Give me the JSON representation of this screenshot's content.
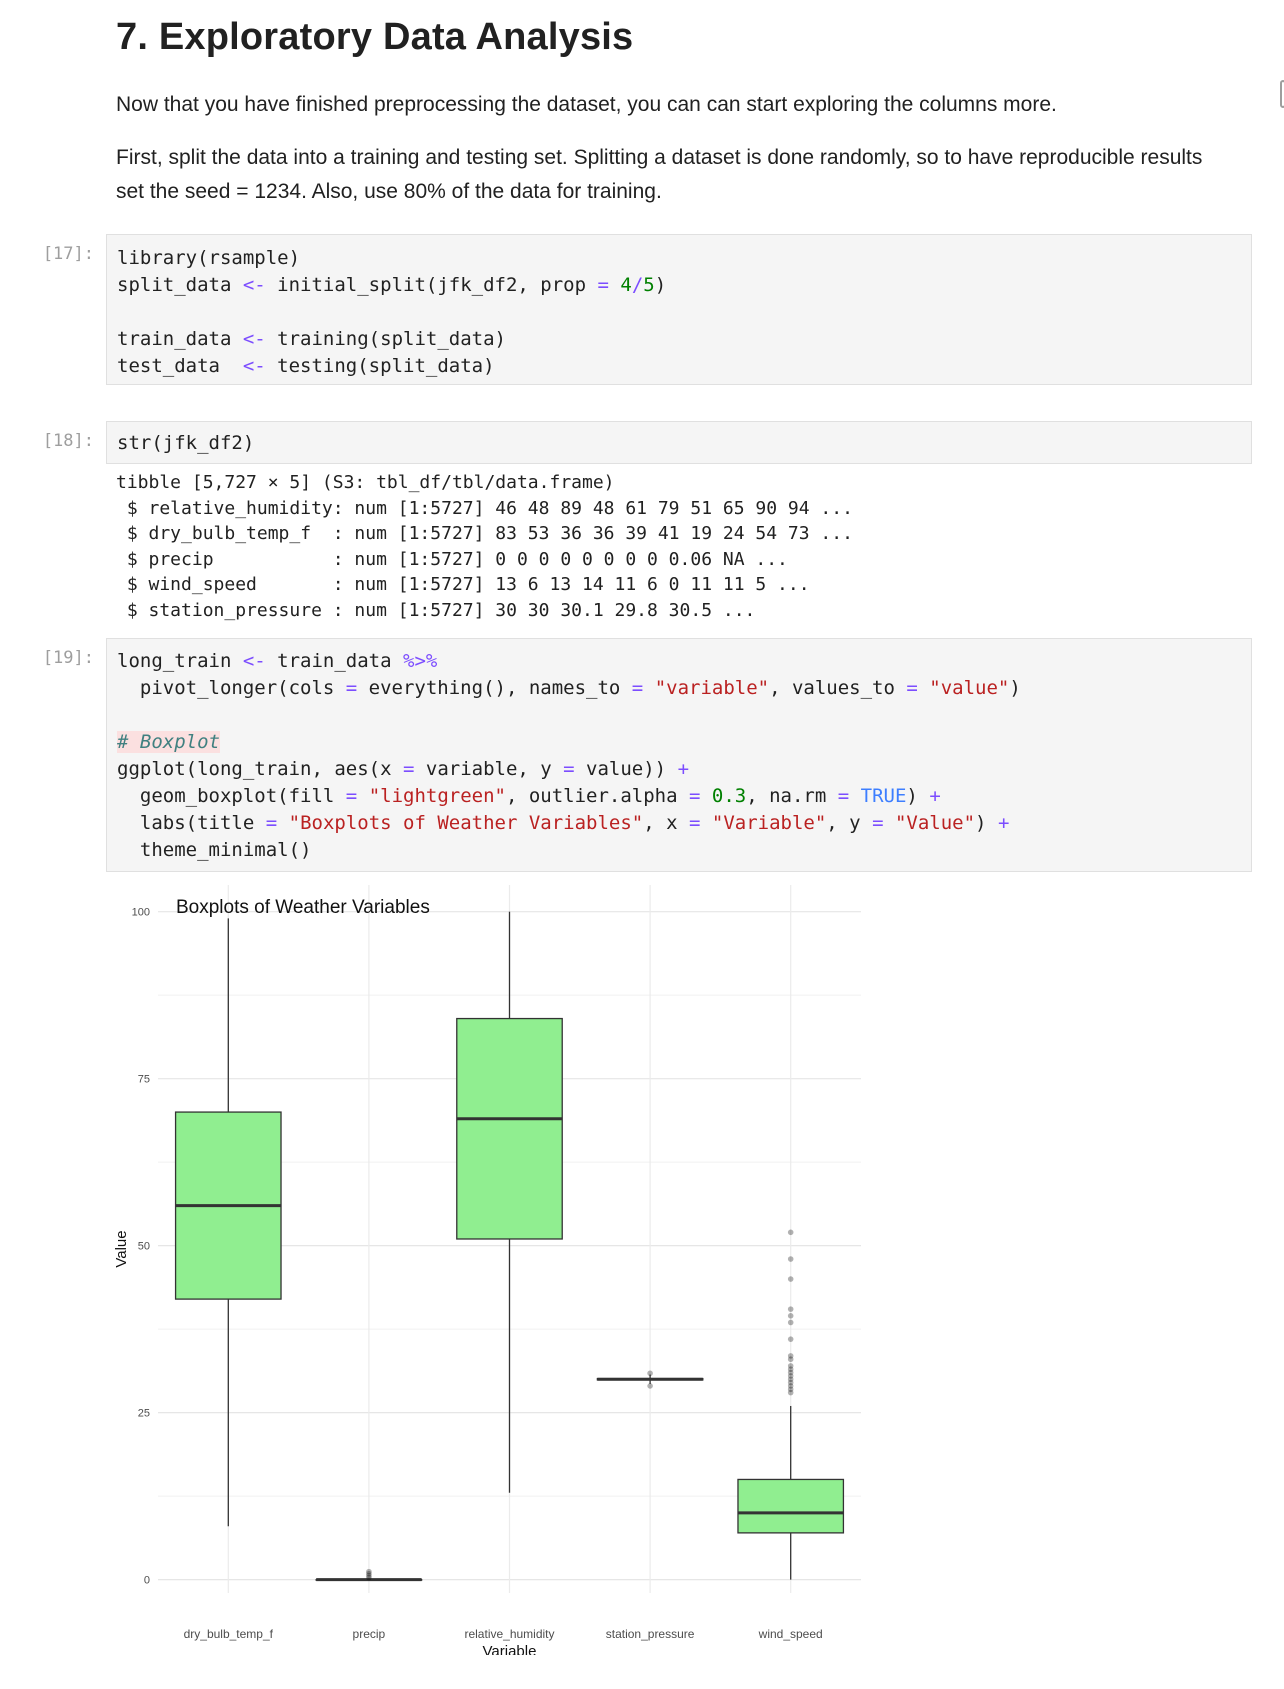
{
  "markdown": {
    "heading": "7. Exploratory Data Analysis",
    "para1": "Now that you have finished preprocessing the dataset, you can can start exploring the columns more.",
    "para2_line1": "First, split the data into a training and testing set. Splitting a dataset is done randomly, so to have reproducible results",
    "para2_line2": "set the seed = 1234. Also, use 80% of the data for training."
  },
  "cells": [
    {
      "prompt": "[17]:",
      "lines": [
        [
          [
            "library(rsample)",
            "tok"
          ]
        ],
        [
          [
            "split_data ",
            "tok"
          ],
          [
            "<-",
            "op"
          ],
          [
            " initial_split(jfk_df2, prop ",
            "tok"
          ],
          [
            "=",
            "op"
          ],
          [
            " ",
            "tok"
          ],
          [
            "4",
            "num"
          ],
          [
            "/",
            "op"
          ],
          [
            "5",
            "num"
          ],
          [
            ")",
            "tok"
          ]
        ],
        [],
        [
          [
            "train_data ",
            "tok"
          ],
          [
            "<-",
            "op"
          ],
          [
            " training(split_data)",
            "tok"
          ]
        ],
        [
          [
            "test_data  ",
            "tok"
          ],
          [
            "<-",
            "op"
          ],
          [
            " testing(split_data)",
            "tok"
          ]
        ]
      ]
    },
    {
      "prompt": "[18]:",
      "lines": [
        [
          [
            "str(jfk_df2)",
            "tok"
          ]
        ]
      ]
    },
    {
      "prompt": "[19]:",
      "lines": [
        [
          [
            "long_train ",
            "tok"
          ],
          [
            "<-",
            "op"
          ],
          [
            " train_data ",
            "tok"
          ],
          [
            "%>%",
            "op"
          ]
        ],
        [
          [
            "  pivot_longer(cols ",
            "tok"
          ],
          [
            "=",
            "op"
          ],
          [
            " everything(), names_to ",
            "tok"
          ],
          [
            "=",
            "op"
          ],
          [
            " ",
            "tok"
          ],
          [
            "\"variable\"",
            "str"
          ],
          [
            ", values_to ",
            "tok"
          ],
          [
            "=",
            "op"
          ],
          [
            " ",
            "tok"
          ],
          [
            "\"value\"",
            "str"
          ],
          [
            ")",
            "tok"
          ]
        ],
        [],
        [
          [
            "# Boxplot",
            "cmt"
          ]
        ],
        [
          [
            "ggplot(long_train, aes(x ",
            "tok"
          ],
          [
            "=",
            "op"
          ],
          [
            " variable, y ",
            "tok"
          ],
          [
            "=",
            "op"
          ],
          [
            " value)) ",
            "tok"
          ],
          [
            "+",
            "op"
          ]
        ],
        [
          [
            "  geom_boxplot(fill ",
            "tok"
          ],
          [
            "=",
            "op"
          ],
          [
            " ",
            "tok"
          ],
          [
            "\"lightgreen\"",
            "str"
          ],
          [
            ", outlier.alpha ",
            "tok"
          ],
          [
            "=",
            "op"
          ],
          [
            " ",
            "tok"
          ],
          [
            "0.3",
            "num"
          ],
          [
            ", na.rm ",
            "tok"
          ],
          [
            "=",
            "op"
          ],
          [
            " ",
            "tok"
          ],
          [
            "TRUE",
            "kw"
          ],
          [
            ") ",
            "tok"
          ],
          [
            "+",
            "op"
          ]
        ],
        [
          [
            "  labs(title ",
            "tok"
          ],
          [
            "=",
            "op"
          ],
          [
            " ",
            "tok"
          ],
          [
            "\"Boxplots of Weather Variables\"",
            "str"
          ],
          [
            ", x ",
            "tok"
          ],
          [
            "=",
            "op"
          ],
          [
            " ",
            "tok"
          ],
          [
            "\"Variable\"",
            "str"
          ],
          [
            ", y ",
            "tok"
          ],
          [
            "=",
            "op"
          ],
          [
            " ",
            "tok"
          ],
          [
            "\"Value\"",
            "str"
          ],
          [
            ") ",
            "tok"
          ],
          [
            "+",
            "op"
          ]
        ],
        [
          [
            "  theme_minimal()",
            "tok"
          ]
        ]
      ]
    }
  ],
  "str_output": [
    "tibble [5,727 × 5] (S3: tbl_df/tbl/data.frame)",
    " $ relative_humidity: num [1:5727] 46 48 89 48 61 79 51 65 90 94 ...",
    " $ dry_bulb_temp_f  : num [1:5727] 83 53 36 36 39 41 19 24 54 73 ...",
    " $ precip           : num [1:5727] 0 0 0 0 0 0 0 0 0.06 NA ...",
    " $ wind_speed       : num [1:5727] 13 6 13 14 11 6 0 11 11 5 ...",
    " $ station_pressure : num [1:5727] 30 30 30.1 29.8 30.5 ..."
  ],
  "chart_data": {
    "type": "boxplot",
    "title": "Boxplots of Weather Variables",
    "xlabel": "Variable",
    "ylabel": "Value",
    "ylim": [
      -2,
      101
    ],
    "yticks": [
      0,
      25,
      50,
      75,
      100
    ],
    "fill_color": "#90ee90",
    "grid": true,
    "categories": [
      "dry_bulb_temp_f",
      "precip",
      "relative_humidity",
      "station_pressure",
      "wind_speed"
    ],
    "boxes": [
      {
        "name": "dry_bulb_temp_f",
        "min": 8,
        "q1": 42,
        "median": 56,
        "q3": 70,
        "max": 99,
        "outliers": []
      },
      {
        "name": "precip",
        "min": 0,
        "q1": 0,
        "median": 0,
        "q3": 0,
        "max": 0,
        "outliers": [
          0.3,
          0.6,
          0.9,
          1.2
        ]
      },
      {
        "name": "relative_humidity",
        "min": 13,
        "q1": 51,
        "median": 69,
        "q3": 84,
        "max": 100,
        "outliers": []
      },
      {
        "name": "station_pressure",
        "min": 29.3,
        "q1": 29.9,
        "median": 30,
        "q3": 30.1,
        "max": 30.7,
        "outliers": [
          29,
          30.9
        ]
      },
      {
        "name": "wind_speed",
        "min": 0,
        "q1": 7,
        "median": 10,
        "q3": 15,
        "max": 26,
        "outliers": [
          28,
          28.5,
          29,
          29.5,
          30,
          30.5,
          31,
          31.5,
          32,
          33,
          33.5,
          36,
          38.5,
          39.5,
          40.5,
          45,
          48,
          52
        ]
      }
    ]
  }
}
